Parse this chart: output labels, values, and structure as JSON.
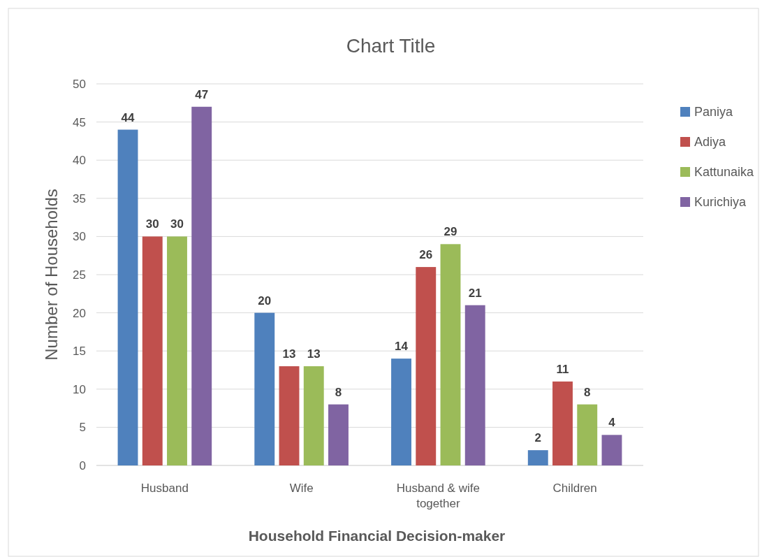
{
  "chart_data": {
    "type": "bar",
    "title": "Chart Title",
    "xlabel": "Household Financial Decision-maker",
    "ylabel": "Number of Households",
    "categories": [
      "Husband",
      "Wife",
      "Husband & wife together",
      "Children"
    ],
    "series": [
      {
        "name": "Paniya",
        "color": "#4f81bd",
        "values": [
          44,
          20,
          14,
          2
        ]
      },
      {
        "name": "Adiya",
        "color": "#c0504d",
        "values": [
          30,
          13,
          26,
          11
        ]
      },
      {
        "name": "Kattunaika",
        "color": "#9bbb59",
        "values": [
          30,
          13,
          29,
          8
        ]
      },
      {
        "name": "Kurichiya",
        "color": "#8064a2",
        "values": [
          47,
          8,
          21,
          4
        ]
      }
    ],
    "ylim": [
      0,
      50
    ],
    "yticks": [
      0,
      5,
      10,
      15,
      20,
      25,
      30,
      35,
      40,
      45,
      50
    ],
    "grid": "y",
    "legend": "right",
    "data_labels": true
  }
}
